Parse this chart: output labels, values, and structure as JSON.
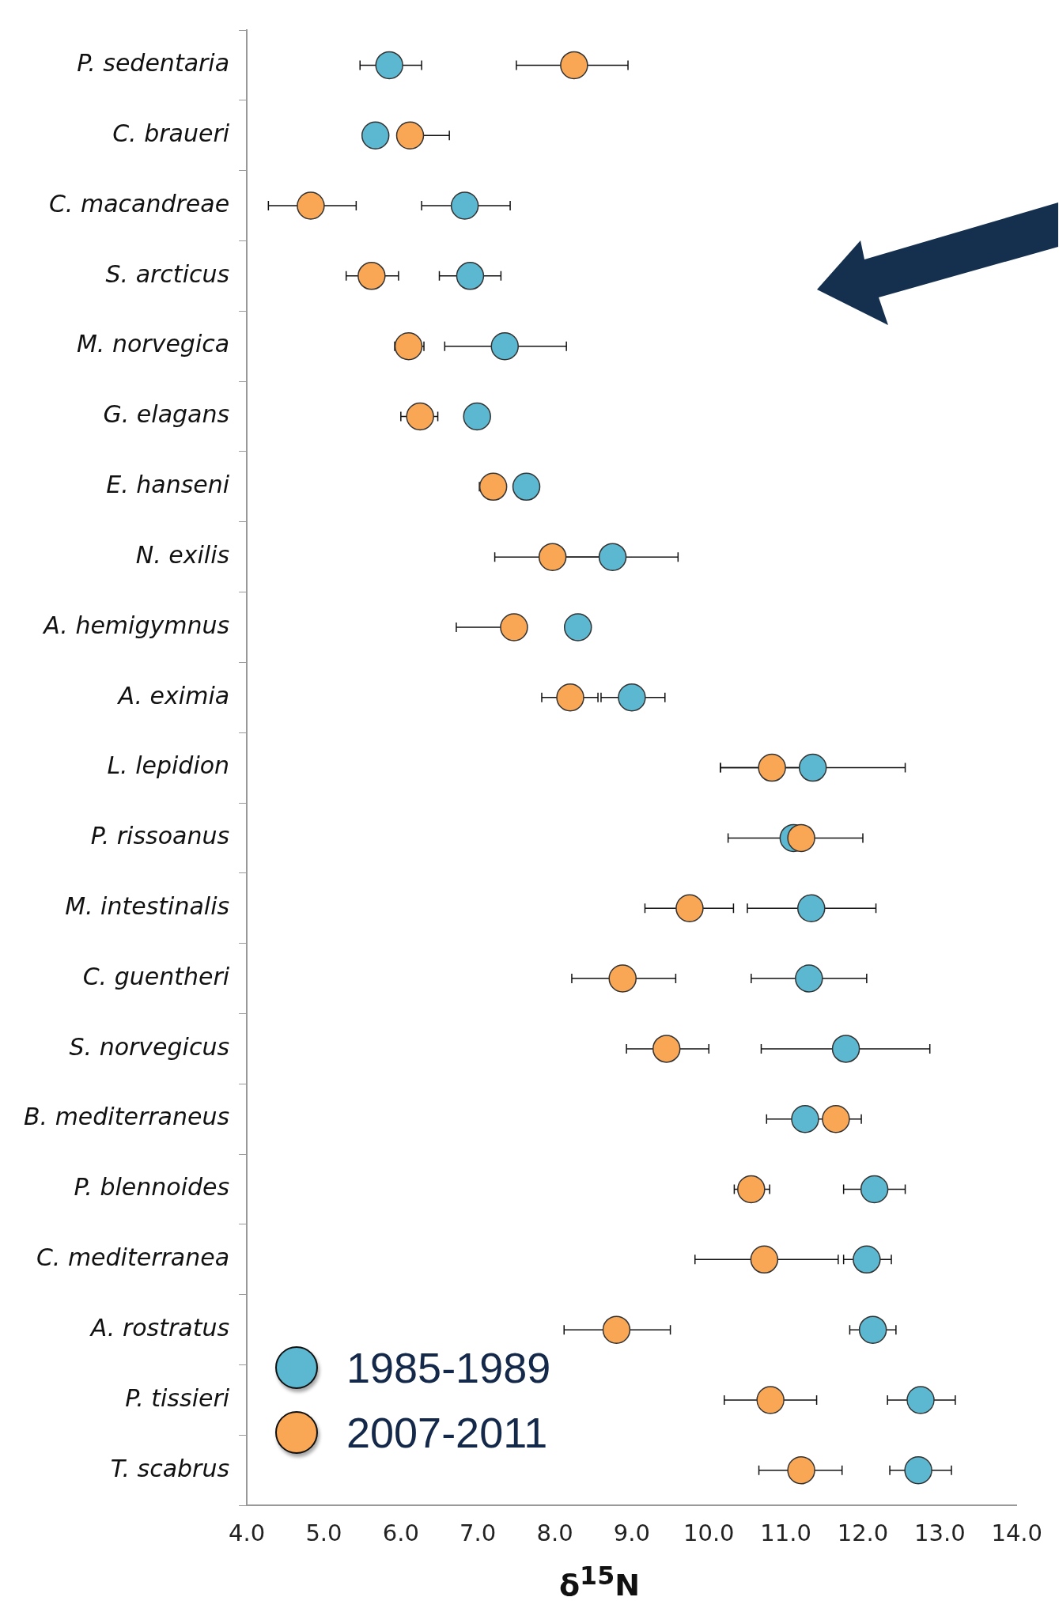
{
  "chart_data": {
    "type": "scatter",
    "orientation": "horizontal",
    "xlabel": "δ$^{15}$N",
    "marker": "circle",
    "legend": "bottom left",
    "categories": [
      "P. sedentaria",
      "C. braueri",
      "C. macandreae",
      "S. arcticus",
      "M. norvegica",
      "G. elagans",
      "E. hanseni",
      "N. exilis",
      "A. hemigymnus",
      "A. eximia",
      "L. lepidion",
      "P. rissoanus",
      "M. intestinalis",
      "C. guentheri",
      "S. norvegicus",
      "B. mediterraneus",
      "P. blennoides",
      "C. mediterranea",
      "A. rostratus",
      "P. tissieri",
      "T. scabrus"
    ],
    "xlim": [
      4,
      14
    ],
    "xticks": [
      {
        "value": 4,
        "label": "4.0"
      },
      {
        "value": 5,
        "label": "5.0"
      },
      {
        "value": 6,
        "label": "6.0"
      },
      {
        "value": 7,
        "label": "7.0"
      },
      {
        "value": 8,
        "label": "8.0"
      },
      {
        "value": 9,
        "label": "9.0"
      },
      {
        "value": 10,
        "label": "10.0"
      },
      {
        "value": 11,
        "label": "11.0"
      },
      {
        "value": 12,
        "label": "12.0"
      },
      {
        "value": 13,
        "label": "13.0"
      },
      {
        "value": 14,
        "label": "14.0"
      }
    ],
    "series": [
      {
        "name": "1985-1989",
        "color": "#5bb8d0",
        "values": [
          5.85,
          5.67,
          6.83,
          6.9,
          7.35,
          6.99,
          7.63,
          8.75,
          8.3,
          9.0,
          11.35,
          11.1,
          11.33,
          11.3,
          11.78,
          11.25,
          12.15,
          12.05,
          12.13,
          12.75,
          12.72
        ],
        "errors": [
          [
            5.47,
            6.27
          ],
          null,
          [
            6.27,
            7.42
          ],
          [
            6.5,
            7.3
          ],
          [
            6.57,
            8.15
          ],
          [
            6.83,
            7.15
          ],
          null,
          [
            8.1,
            9.6
          ],
          null,
          [
            8.6,
            9.43
          ],
          [
            10.15,
            12.55
          ],
          null,
          [
            10.5,
            12.17
          ],
          [
            10.55,
            12.05
          ],
          [
            10.68,
            12.87
          ],
          null,
          [
            11.75,
            12.55
          ],
          [
            11.75,
            12.37
          ],
          [
            11.83,
            12.43
          ],
          [
            12.32,
            13.2
          ],
          [
            12.35,
            13.15
          ]
        ]
      },
      {
        "name": "2007-2011",
        "color": "#f9a655",
        "values": [
          8.25,
          6.12,
          4.83,
          5.62,
          6.1,
          6.25,
          7.2,
          7.97,
          7.47,
          8.2,
          10.82,
          11.2,
          9.75,
          8.88,
          9.45,
          11.65,
          10.55,
          10.72,
          8.8,
          10.8,
          11.2
        ],
        "errors": [
          [
            7.5,
            8.95
          ],
          [
            6.12,
            6.63
          ],
          [
            4.28,
            5.42
          ],
          [
            5.29,
            5.97
          ],
          [
            5.92,
            6.3
          ],
          [
            6.0,
            6.48
          ],
          [
            7.02,
            7.35
          ],
          [
            7.22,
            8.6
          ],
          [
            6.72,
            7.47
          ],
          [
            7.83,
            8.56
          ],
          [
            10.15,
            11.5
          ],
          [
            10.25,
            12.0
          ],
          [
            9.17,
            10.32
          ],
          [
            8.22,
            9.57
          ],
          [
            8.93,
            10.0
          ],
          [
            10.75,
            11.98
          ],
          [
            10.33,
            10.79
          ],
          [
            9.82,
            11.68
          ],
          [
            8.12,
            9.5
          ],
          [
            10.2,
            11.4
          ],
          [
            10.65,
            11.73
          ]
        ]
      }
    ]
  }
}
